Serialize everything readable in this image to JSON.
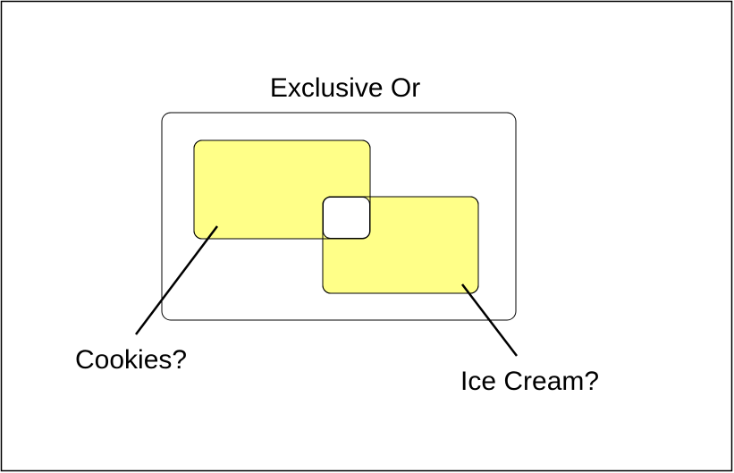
{
  "diagram": {
    "title": "Exclusive Or",
    "set_a_label": "Cookies?",
    "set_b_label": "Ice Cream?"
  },
  "colors": {
    "background": "#ffffff",
    "stroke": "#000000",
    "fill": "#ffff88",
    "intersection": "#ffffff"
  }
}
